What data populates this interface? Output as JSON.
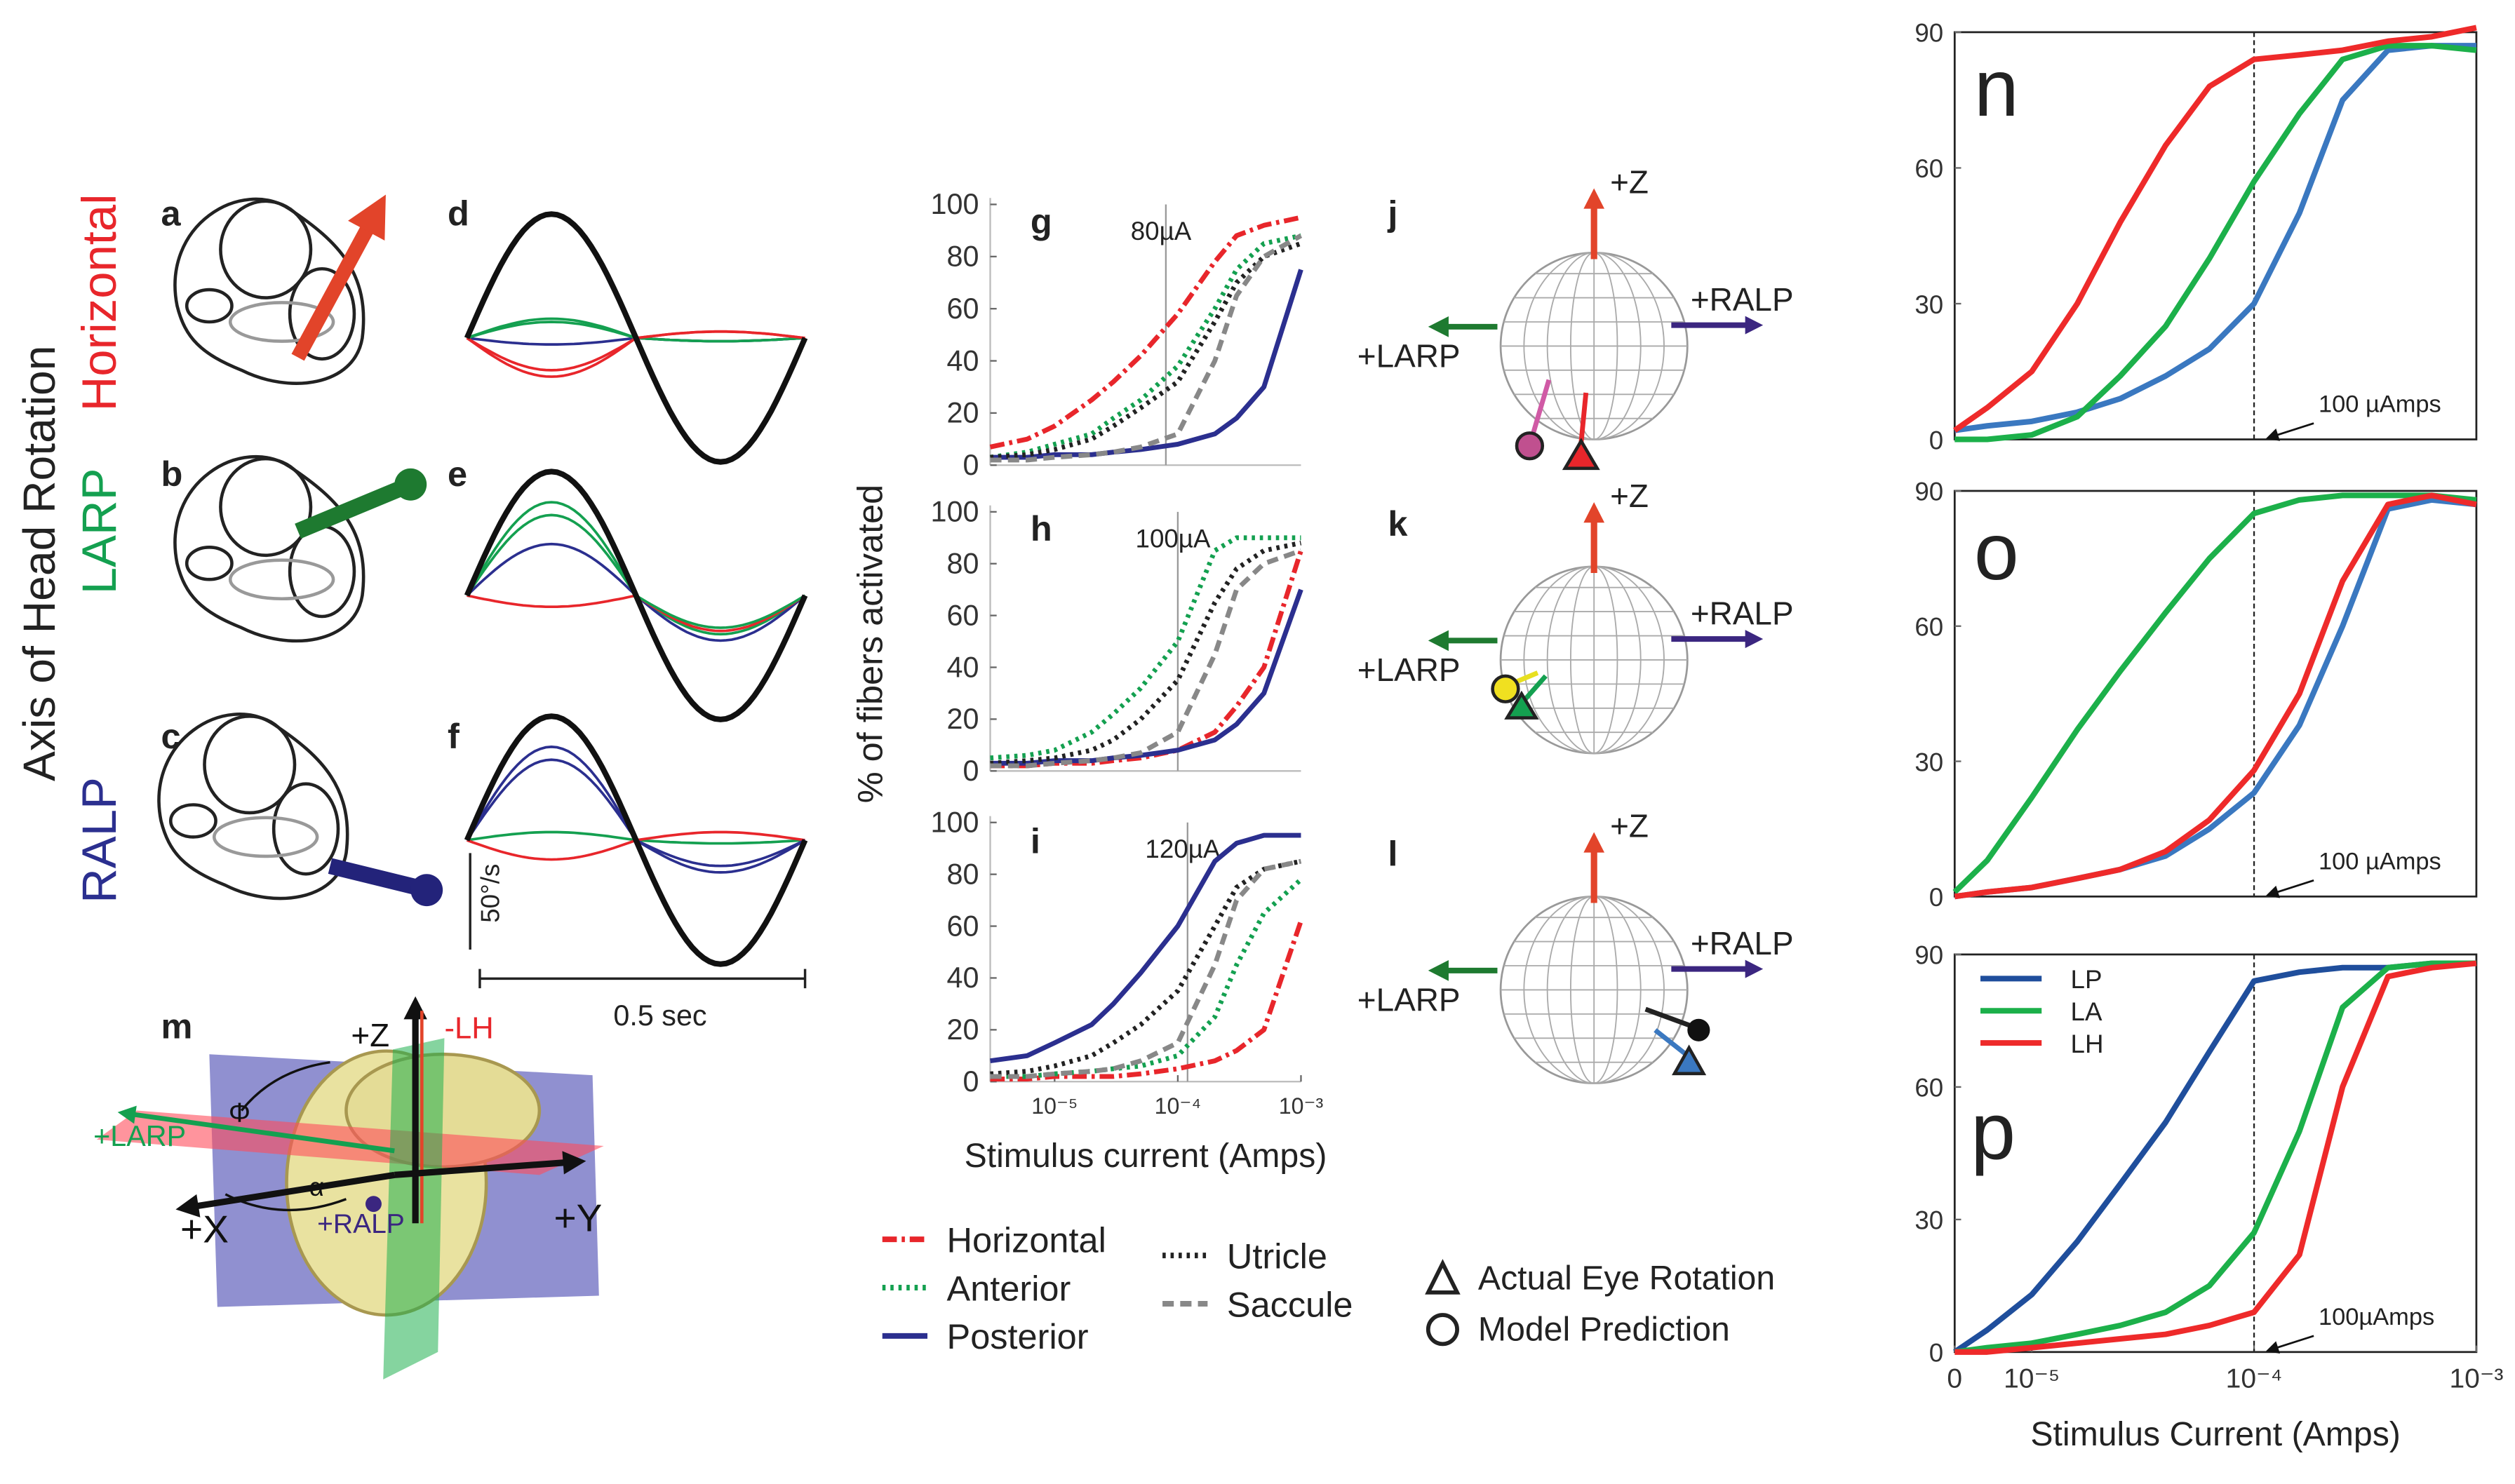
{
  "figure": {
    "axis_title": "Axis of Head Rotation",
    "rows": [
      "Horizontal",
      "LARP",
      "RALP"
    ],
    "panels": [
      "a",
      "b",
      "c",
      "d",
      "e",
      "f",
      "j",
      "k",
      "l",
      "m"
    ],
    "scale_y": "50°/s",
    "scale_x": "0.5 sec",
    "sphere_labels": [
      "+Z",
      "+RALP",
      "+LARP"
    ],
    "head_labels": [
      "+Z",
      "-LH",
      "+LARP",
      "Φ",
      "α",
      "+RALP",
      "+X",
      "+Y"
    ],
    "shape_legend": [
      "Actual Eye Rotation",
      "Model Prediction"
    ],
    "y_label": "% of fibers activated"
  },
  "chart_data": [
    {
      "type": "line",
      "panel": "g",
      "annotation": "80µA",
      "marker_x": 8e-05,
      "x": [
        3e-06,
        6e-06,
        1e-05,
        2e-05,
        3e-05,
        5e-05,
        0.0001,
        0.0002,
        0.0003,
        0.0005,
        0.001
      ],
      "xlim": [
        3e-06,
        0.001
      ],
      "ylim": [
        0,
        100
      ],
      "yticks": [
        0,
        20,
        40,
        60,
        80,
        100
      ],
      "series": [
        {
          "name": "Horizontal",
          "color": "#e8262b",
          "dash": "dashdot",
          "values": [
            7,
            10,
            15,
            25,
            32,
            42,
            58,
            78,
            88,
            92,
            95
          ]
        },
        {
          "name": "Anterior",
          "color": "#14a050",
          "dash": "dot",
          "values": [
            3,
            5,
            8,
            12,
            18,
            25,
            38,
            60,
            75,
            85,
            88
          ]
        },
        {
          "name": "Posterior",
          "color": "#2b2f8f",
          "dash": "solid",
          "values": [
            3,
            3,
            4,
            4,
            5,
            6,
            8,
            12,
            18,
            30,
            75
          ]
        },
        {
          "name": "Utricle",
          "color": "#222222",
          "dash": "dot",
          "values": [
            3,
            4,
            6,
            10,
            15,
            22,
            32,
            55,
            70,
            80,
            85
          ]
        },
        {
          "name": "Saccule",
          "color": "#888888",
          "dash": "dash",
          "values": [
            2,
            2,
            3,
            4,
            5,
            7,
            12,
            40,
            65,
            80,
            88
          ]
        }
      ]
    },
    {
      "type": "line",
      "panel": "h",
      "annotation": "100µA",
      "marker_x": 0.0001,
      "x": [
        3e-06,
        6e-06,
        1e-05,
        2e-05,
        3e-05,
        5e-05,
        0.0001,
        0.0002,
        0.0003,
        0.0005,
        0.001
      ],
      "xlim": [
        3e-06,
        0.001
      ],
      "ylim": [
        0,
        100
      ],
      "yticks": [
        0,
        20,
        40,
        60,
        80,
        100
      ],
      "series": [
        {
          "values": [
            2,
            2,
            3,
            3,
            4,
            5,
            8,
            15,
            25,
            40,
            85
          ]
        },
        {
          "values": [
            5,
            6,
            8,
            15,
            22,
            32,
            50,
            85,
            90,
            90,
            90
          ]
        },
        {
          "values": [
            3,
            3,
            4,
            4,
            5,
            6,
            8,
            12,
            18,
            30,
            70
          ]
        },
        {
          "values": [
            3,
            4,
            5,
            8,
            12,
            20,
            35,
            65,
            78,
            85,
            88
          ]
        },
        {
          "values": [
            2,
            2,
            3,
            4,
            5,
            7,
            15,
            45,
            70,
            80,
            85
          ]
        }
      ]
    },
    {
      "type": "line",
      "panel": "i",
      "annotation": "120µA",
      "marker_x": 0.00012,
      "x": [
        3e-06,
        6e-06,
        1e-05,
        2e-05,
        3e-05,
        5e-05,
        0.0001,
        0.0002,
        0.0003,
        0.0005,
        0.001
      ],
      "xlim": [
        3e-06,
        0.001
      ],
      "ylim": [
        0,
        100
      ],
      "yticks": [
        0,
        20,
        40,
        60,
        80,
        100
      ],
      "xticks": [
        {
          "value": 1e-05,
          "label": "10⁻⁵"
        },
        {
          "value": 0.0001,
          "label": "10⁻⁴"
        },
        {
          "value": 0.001,
          "label": "10⁻³"
        }
      ],
      "x_label": "Stimulus current (Amps)",
      "series": [
        {
          "values": [
            1,
            1,
            2,
            2,
            2,
            3,
            5,
            8,
            12,
            20,
            62
          ]
        },
        {
          "values": [
            2,
            2,
            3,
            4,
            5,
            6,
            10,
            25,
            45,
            65,
            78
          ]
        },
        {
          "values": [
            8,
            10,
            15,
            22,
            30,
            42,
            60,
            85,
            92,
            95,
            95
          ]
        },
        {
          "values": [
            3,
            4,
            6,
            10,
            15,
            22,
            35,
            60,
            75,
            82,
            85
          ]
        },
        {
          "values": [
            2,
            2,
            3,
            4,
            5,
            8,
            15,
            45,
            70,
            82,
            85
          ]
        }
      ]
    },
    {
      "type": "line",
      "panel": "n",
      "annotation": "100 µAmps",
      "marker_x": 0.0001,
      "x": [
        4.5e-06,
        6.3e-06,
        1e-05,
        1.6e-05,
        2.5e-05,
        4e-05,
        6.3e-05,
        0.0001,
        0.00016,
        0.00025,
        0.0004,
        0.00063,
        0.001
      ],
      "xlim": [
        4.5e-06,
        0.001
      ],
      "ylim": [
        0,
        90
      ],
      "yticks": [
        0,
        30,
        60,
        90
      ],
      "series": [
        {
          "color": "#3a78c0",
          "values": [
            2,
            3,
            4,
            6,
            9,
            14,
            20,
            30,
            50,
            75,
            86,
            87,
            87
          ]
        },
        {
          "color": "#1cb04a",
          "values": [
            0,
            0,
            1,
            5,
            14,
            25,
            40,
            57,
            72,
            84,
            87,
            87,
            86
          ]
        },
        {
          "color": "#ee2a2a",
          "values": [
            2,
            7,
            15,
            30,
            48,
            65,
            78,
            84,
            85,
            86,
            88,
            89,
            91
          ]
        }
      ]
    },
    {
      "type": "line",
      "panel": "o",
      "annotation": "100 µAmps",
      "marker_x": 0.0001,
      "x": [
        4.5e-06,
        6.3e-06,
        1e-05,
        1.6e-05,
        2.5e-05,
        4e-05,
        6.3e-05,
        0.0001,
        0.00016,
        0.00025,
        0.0004,
        0.00063,
        0.001
      ],
      "xlim": [
        4.5e-06,
        0.001
      ],
      "ylim": [
        0,
        90
      ],
      "yticks": [
        0,
        30,
        60,
        90
      ],
      "series": [
        {
          "color": "#3a78c0",
          "values": [
            0,
            1,
            2,
            4,
            6,
            9,
            15,
            23,
            38,
            60,
            86,
            88,
            87
          ]
        },
        {
          "color": "#1cb04a",
          "values": [
            1,
            8,
            22,
            37,
            50,
            63,
            75,
            85,
            88,
            89,
            89,
            89,
            88
          ]
        },
        {
          "color": "#ee2a2a",
          "values": [
            0,
            1,
            2,
            4,
            6,
            10,
            17,
            28,
            45,
            70,
            87,
            89,
            87
          ]
        }
      ]
    },
    {
      "type": "line",
      "panel": "p",
      "annotation": "100µAmps",
      "marker_x": 0.0001,
      "x": [
        4.5e-06,
        6.3e-06,
        1e-05,
        1.6e-05,
        2.5e-05,
        4e-05,
        6.3e-05,
        0.0001,
        0.00016,
        0.00025,
        0.0004,
        0.00063,
        0.001
      ],
      "xlim": [
        4.5e-06,
        0.001
      ],
      "ylim": [
        0,
        90
      ],
      "yticks": [
        0,
        30,
        60,
        90
      ],
      "xticks": [
        {
          "value": 4.5e-06,
          "label": "0"
        },
        {
          "value": 1e-05,
          "label": "10⁻⁵"
        },
        {
          "value": 0.0001,
          "label": "10⁻⁴"
        },
        {
          "value": 0.001,
          "label": "10⁻³"
        }
      ],
      "x_label": "Stimulus Current (Amps)",
      "series": [
        {
          "name": "LP",
          "color": "#1f4e9c",
          "values": [
            0,
            5,
            13,
            25,
            38,
            52,
            68,
            84,
            86,
            87,
            87,
            88,
            88
          ]
        },
        {
          "name": "LA",
          "color": "#1cb04a",
          "values": [
            0,
            1,
            2,
            4,
            6,
            9,
            15,
            27,
            50,
            78,
            87,
            88,
            88
          ]
        },
        {
          "name": "LH",
          "color": "#ee2a2a",
          "values": [
            0,
            0,
            1,
            2,
            3,
            4,
            6,
            9,
            22,
            60,
            85,
            87,
            88
          ]
        }
      ]
    }
  ]
}
